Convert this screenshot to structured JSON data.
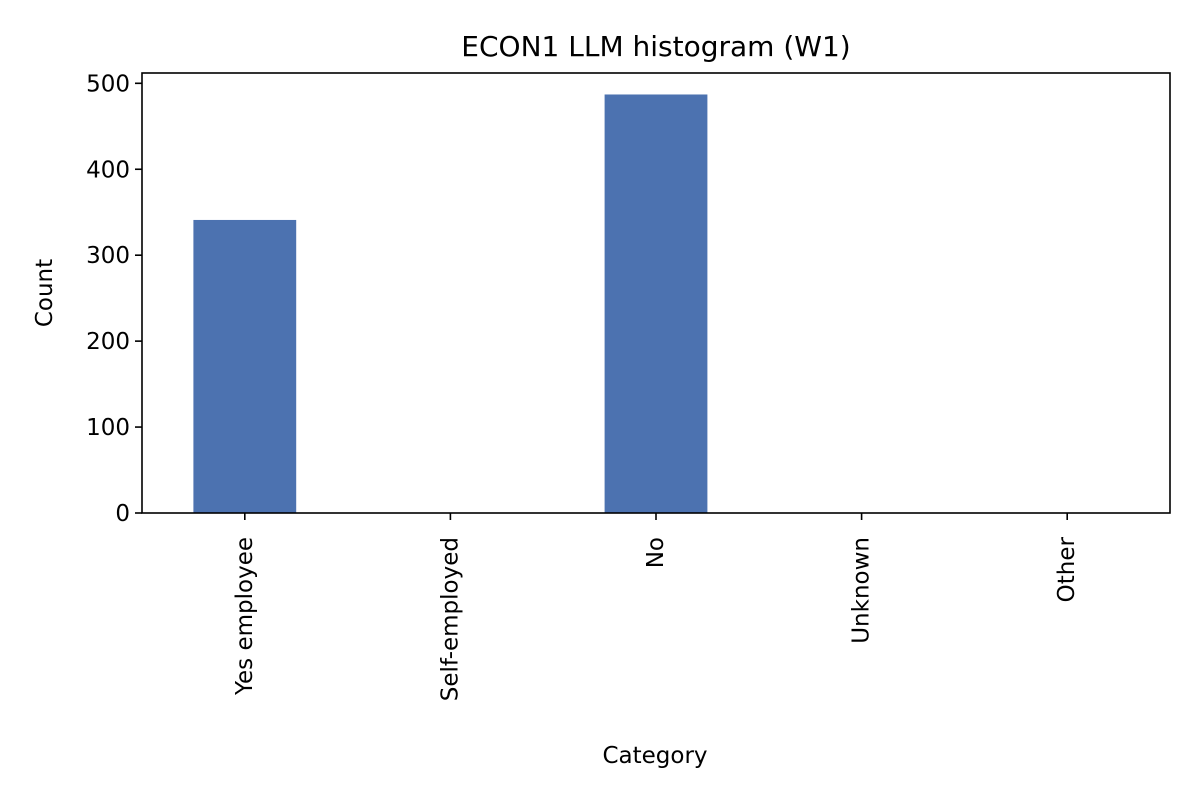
{
  "chart_data": {
    "type": "bar",
    "title": "ECON1 LLM histogram (W1)",
    "xlabel": "Category",
    "ylabel": "Count",
    "categories": [
      "Yes employee",
      "Self-employed",
      "No",
      "Unknown",
      "Other"
    ],
    "values": [
      341,
      0,
      487,
      0,
      0
    ],
    "ylim": [
      0,
      512
    ],
    "yticks": [
      0,
      100,
      200,
      300,
      400,
      500
    ],
    "grid": false,
    "legend": "none",
    "bar_color": "#4c72b0"
  }
}
